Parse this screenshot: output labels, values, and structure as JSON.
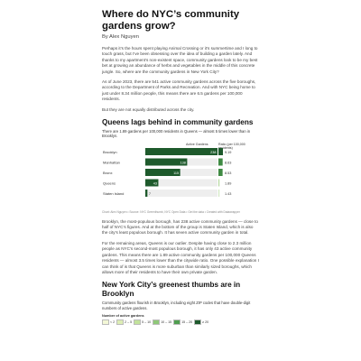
{
  "article": {
    "title": "Where do NYC’s community gardens grow?",
    "byline": "By Alex Nguyen",
    "paragraphs": [
      "Perhaps it’s the hours spent playing Animal Crossing or it’s summertime and I long to touch grass, but I’ve been obsessing over the idea of building a garden lately. And thanks to my apartment’s non-existent space, community gardens look to be my best bet at growing an abundance of herbs and vegetables in the middle of this concrete jungle. So, where are the community gardens in New York City?",
      "As of June 2023, there are 541 active community gardens across the five boroughs, according to the Department of Parks and Recreation. And with NYC being home to just under 8.34 million people, this means there are 6.5 gardens per 100,000 residents.",
      "But they are not equally distributed across the city."
    ],
    "paragraphs2": [
      "Brooklyn, the most-populous borough, has 238 active community gardens — close to half of NYC’s figures. And at the bottom of the group is Staten Island, which is also the city’s least populous borough. It has seven active community garden in total.",
      "For the remaining areas, Queens is our outlier. Despite having close to 2.3 million people as NYC’s second-most populous borough, it has only 43 active community gardens. This means there are 1.89 active community gardens per 100,000 Queens residents — almost 3.5 times lower than the citywide ratio. One possible explanation I can think of is that Queens is more suburban than similarly sized boroughs, which allows more of their residents to have their own private garden."
    ]
  },
  "chart1": {
    "heading": "Queens lags behind in community gardens",
    "dek": "There are 1.89 gardens per 100,000 residents in Queens — almost 5 times lower than in Brooklyn.",
    "col_active": "Active Gardens",
    "col_ratio": "Ratio (per 100,000 residents)",
    "source_prefix": "Chart: Alex Nguyen • Source:",
    "source_link1": "NYC Greenthumb",
    "source_sep1": ",",
    "source_link2": "NYC Open Data",
    "source_sep2": "•",
    "source_link3": "Get the data",
    "source_sep3": "• Created with",
    "source_link4": "Datawrapper"
  },
  "chart_data": {
    "type": "bar",
    "categories": [
      "Brooklyn",
      "Manhattan",
      "Bronx",
      "Queens",
      "Staten Island"
    ],
    "series": [
      {
        "name": "Active Gardens",
        "values": [
          238,
          138,
          115,
          43,
          7
        ]
      },
      {
        "name": "Ratio (per 100,000 residents)",
        "values": [
          9.19,
          8.63,
          8.53,
          1.89,
          1.43
        ]
      }
    ],
    "value_labels": [
      "238",
      "138",
      "115",
      "43",
      "7"
    ],
    "ratio_labels": [
      "9.19",
      "8.63",
      "8.53",
      "1.89",
      "1.43"
    ],
    "colors": [
      "#1e5a2c",
      "#1e5a2c",
      "#1e5a2c",
      "#1e5a2c",
      "#1e5a2c"
    ],
    "ratio_colors": [
      "#1e5a2c",
      "#3f8a43",
      "#3f8a43",
      "#b5d89f",
      "#d2e8c2"
    ],
    "xlim": [
      0,
      238
    ],
    "ratio_lim": [
      0,
      9.19
    ]
  },
  "section2": {
    "heading": "New York City’s greenest thumbs are in Brooklyn",
    "dek": "Community gardens flourish in Brooklyn, including eight ZIP codes that have double-digit numbers of active gardens.",
    "legend_title": "Number of active gardens",
    "legend": [
      {
        "label": "< 2",
        "color": "#f3f7d6"
      },
      {
        "label": "2 – 5",
        "color": "#dcedb4"
      },
      {
        "label": "5 – 10",
        "color": "#c2e29b"
      },
      {
        "label": "10 – 15",
        "color": "#8fc878"
      },
      {
        "label": "15 – 20",
        "color": "#4f9e4f"
      },
      {
        "label": "≥ 20",
        "color": "#1e5a2c"
      }
    ]
  }
}
